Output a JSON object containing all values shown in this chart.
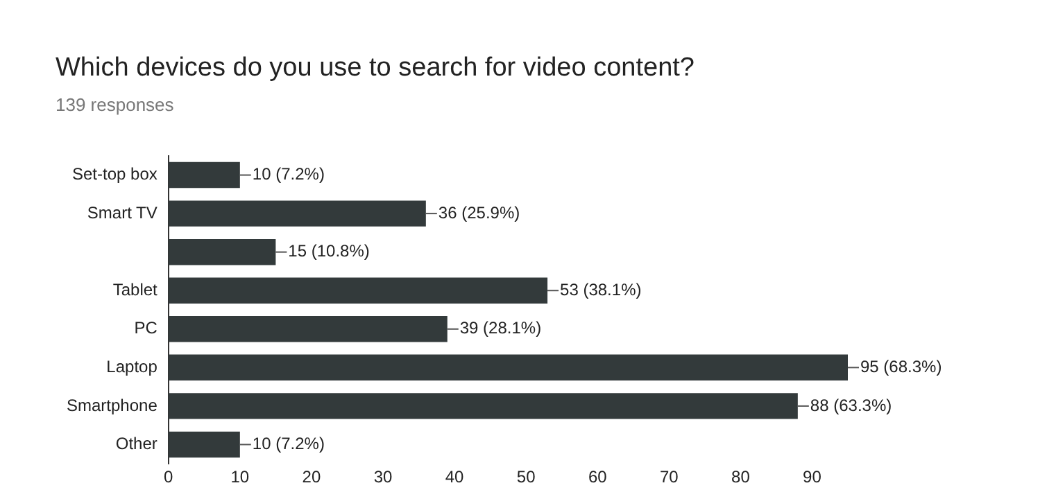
{
  "chart_data": {
    "type": "bar",
    "orientation": "horizontal",
    "title": "Which devices do you use to search for video content?",
    "subtitle": "139 responses",
    "categories": [
      "Set-top box",
      "Smart TV",
      null,
      "Tablet",
      "PC",
      "Laptop",
      "Smartphone",
      "Other"
    ],
    "values": [
      10,
      36,
      15,
      53,
      39,
      95,
      88,
      10
    ],
    "value_labels": [
      "10 (7.2%)",
      "36 (25.9%)",
      "15 (10.8%)",
      "53 (38.1%)",
      "39 (28.1%)",
      "95 (68.3%)",
      "88 (63.3%)",
      "10 (7.2%)"
    ],
    "color": "#333a3b",
    "xlim": [
      0,
      95
    ],
    "xticks": [
      0,
      10,
      20,
      30,
      40,
      50,
      60,
      70,
      80,
      90
    ],
    "grid": false,
    "legend": false
  }
}
